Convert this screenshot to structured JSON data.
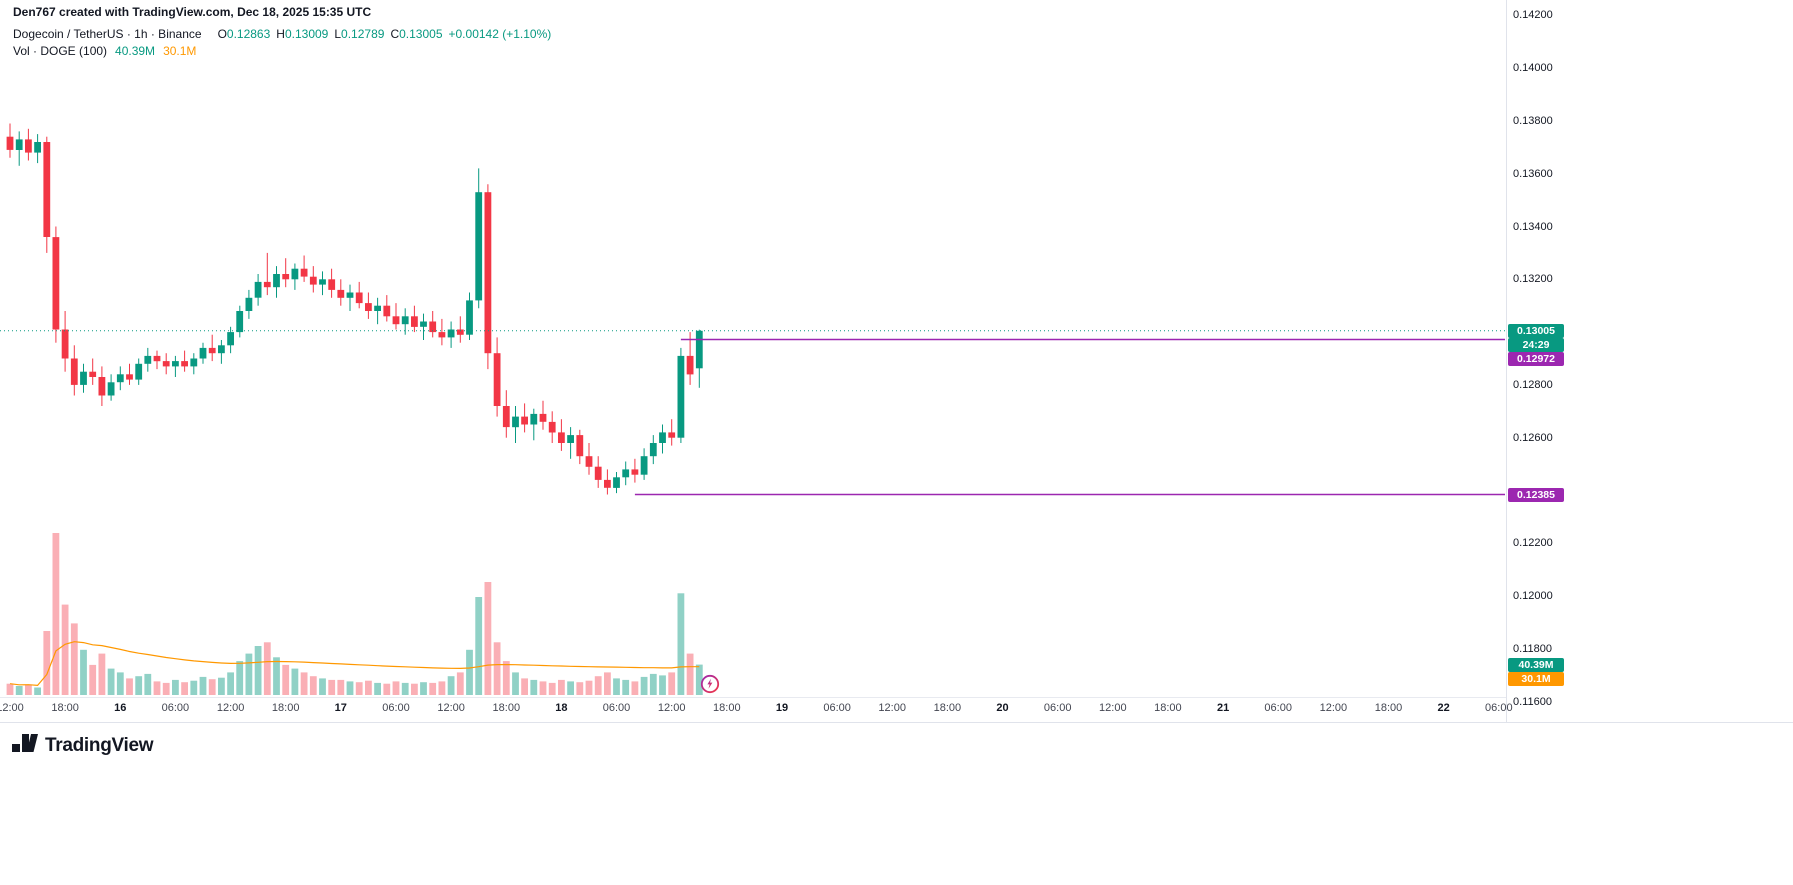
{
  "header": {
    "watermark": "Den767 created with TradingView.com, Dec 18, 2025 15:35 UTC",
    "symbol_line": {
      "title": "Dogecoin / TetherUS · 1h · Binance",
      "ohlc": [
        {
          "label": "O",
          "value": "0.12863"
        },
        {
          "label": "H",
          "value": "0.13009"
        },
        {
          "label": "L",
          "value": "0.12789"
        },
        {
          "label": "C",
          "value": "0.13005"
        }
      ],
      "change": "+0.00142 (+1.10%)"
    },
    "volume_line": {
      "title": "Vol · DOGE (100)",
      "value": "40.39M",
      "ma": "30.1M"
    }
  },
  "price_axis": {
    "labels": [
      {
        "text": "0.14200",
        "value": 0.142
      },
      {
        "text": "0.14000",
        "value": 0.14
      },
      {
        "text": "0.13800",
        "value": 0.138
      },
      {
        "text": "0.13600",
        "value": 0.136
      },
      {
        "text": "0.13400",
        "value": 0.134
      },
      {
        "text": "0.13200",
        "value": 0.132
      },
      {
        "text": "0.12800",
        "value": 0.128
      },
      {
        "text": "0.12600",
        "value": 0.126
      },
      {
        "text": "0.12200",
        "value": 0.122
      },
      {
        "text": "0.12000",
        "value": 0.12
      },
      {
        "text": "0.11800",
        "value": 0.118
      },
      {
        "text": "0.11600",
        "value": 0.116
      }
    ],
    "current_badge": "0.13005",
    "countdown_badge": "24:29",
    "level_badges": [
      "0.12972",
      "0.12385"
    ],
    "volume_badge": "40.39M",
    "volume_ma_badge": "30.1M"
  },
  "time_axis": {
    "labels": [
      {
        "text": "12:00",
        "hour": 0,
        "major": false
      },
      {
        "text": "18:00",
        "hour": 6,
        "major": false
      },
      {
        "text": "16",
        "hour": 12,
        "major": true
      },
      {
        "text": "06:00",
        "hour": 18,
        "major": false
      },
      {
        "text": "12:00",
        "hour": 24,
        "major": false
      },
      {
        "text": "18:00",
        "hour": 30,
        "major": false
      },
      {
        "text": "17",
        "hour": 36,
        "major": true
      },
      {
        "text": "06:00",
        "hour": 42,
        "major": false
      },
      {
        "text": "12:00",
        "hour": 48,
        "major": false
      },
      {
        "text": "18:00",
        "hour": 54,
        "major": false
      },
      {
        "text": "18",
        "hour": 60,
        "major": true
      },
      {
        "text": "06:00",
        "hour": 66,
        "major": false
      },
      {
        "text": "12:00",
        "hour": 72,
        "major": false
      },
      {
        "text": "18:00",
        "hour": 78,
        "major": false
      },
      {
        "text": "19",
        "hour": 84,
        "major": true
      },
      {
        "text": "06:00",
        "hour": 90,
        "major": false
      },
      {
        "text": "12:00",
        "hour": 96,
        "major": false
      },
      {
        "text": "18:00",
        "hour": 102,
        "major": false
      },
      {
        "text": "20",
        "hour": 108,
        "major": true
      },
      {
        "text": "06:00",
        "hour": 114,
        "major": false
      },
      {
        "text": "12:00",
        "hour": 120,
        "major": false
      },
      {
        "text": "18:00",
        "hour": 126,
        "major": false
      },
      {
        "text": "21",
        "hour": 132,
        "major": true
      },
      {
        "text": "06:00",
        "hour": 138,
        "major": false
      },
      {
        "text": "12:00",
        "hour": 144,
        "major": false
      },
      {
        "text": "18:00",
        "hour": 150,
        "major": false
      },
      {
        "text": "22",
        "hour": 156,
        "major": true
      },
      {
        "text": "06:00",
        "hour": 162,
        "major": false
      }
    ]
  },
  "footer": {
    "brand": "TradingView"
  },
  "colors": {
    "up": "#089981",
    "down": "#f23645",
    "vol_up": "rgba(8,153,129,0.45)",
    "vol_down": "rgba(242,54,69,0.40)",
    "volume_ma": "#ff9800",
    "level_line": "#9c27b0",
    "current_line": "#089981"
  },
  "chart_data": {
    "type": "candlestick",
    "interval": "1h",
    "pair": "Dogecoin / TetherUS",
    "exchange": "Binance",
    "price_range": [
      0.1158,
      0.1422
    ],
    "current_price": 0.13005,
    "volume_ma_window": 100,
    "levels": [
      {
        "price": 0.12972,
        "start_index": 73
      },
      {
        "price": 0.12385,
        "start_index": 68
      }
    ],
    "candles": [
      [
        0.1374,
        0.1379,
        0.1366,
        0.1369,
        15
      ],
      [
        0.1369,
        0.1376,
        0.1363,
        0.1373,
        12
      ],
      [
        0.1373,
        0.1377,
        0.1365,
        0.1368,
        14
      ],
      [
        0.1368,
        0.1375,
        0.1364,
        0.1372,
        10
      ],
      [
        0.1372,
        0.1374,
        0.133,
        0.1336,
        85
      ],
      [
        0.1336,
        0.134,
        0.1296,
        0.1301,
        215
      ],
      [
        0.1301,
        0.1308,
        0.1285,
        0.129,
        120
      ],
      [
        0.129,
        0.1295,
        0.1276,
        0.128,
        95
      ],
      [
        0.128,
        0.1288,
        0.1277,
        0.1285,
        60
      ],
      [
        0.1285,
        0.129,
        0.128,
        0.1283,
        40
      ],
      [
        0.1283,
        0.1287,
        0.1272,
        0.1276,
        55
      ],
      [
        0.1276,
        0.1284,
        0.1274,
        0.1281,
        35
      ],
      [
        0.1281,
        0.1287,
        0.1278,
        0.1284,
        30
      ],
      [
        0.1284,
        0.1288,
        0.128,
        0.1282,
        22
      ],
      [
        0.1282,
        0.129,
        0.128,
        0.1288,
        25
      ],
      [
        0.1288,
        0.1294,
        0.1285,
        0.1291,
        28
      ],
      [
        0.1291,
        0.1293,
        0.1286,
        0.1289,
        18
      ],
      [
        0.1289,
        0.1292,
        0.1284,
        0.1287,
        16
      ],
      [
        0.1287,
        0.1291,
        0.1283,
        0.1289,
        20
      ],
      [
        0.1289,
        0.1293,
        0.1285,
        0.1287,
        17
      ],
      [
        0.1287,
        0.1292,
        0.1284,
        0.129,
        19
      ],
      [
        0.129,
        0.1296,
        0.1288,
        0.1294,
        24
      ],
      [
        0.1294,
        0.1299,
        0.1289,
        0.1292,
        21
      ],
      [
        0.1292,
        0.1297,
        0.1288,
        0.1295,
        23
      ],
      [
        0.1295,
        0.1302,
        0.1292,
        0.13,
        30
      ],
      [
        0.13,
        0.131,
        0.1298,
        0.1308,
        45
      ],
      [
        0.1308,
        0.1316,
        0.1305,
        0.1313,
        55
      ],
      [
        0.1313,
        0.1322,
        0.131,
        0.1319,
        65
      ],
      [
        0.1319,
        0.133,
        0.1314,
        0.1317,
        70
      ],
      [
        0.1317,
        0.1325,
        0.1313,
        0.1322,
        50
      ],
      [
        0.1322,
        0.1328,
        0.1317,
        0.132,
        40
      ],
      [
        0.132,
        0.1326,
        0.1316,
        0.1324,
        35
      ],
      [
        0.1324,
        0.1329,
        0.1319,
        0.1321,
        30
      ],
      [
        0.1321,
        0.1325,
        0.1315,
        0.1318,
        25
      ],
      [
        0.1318,
        0.1323,
        0.1314,
        0.132,
        22
      ],
      [
        0.132,
        0.1324,
        0.1313,
        0.1316,
        20
      ],
      [
        0.1316,
        0.132,
        0.131,
        0.1313,
        20
      ],
      [
        0.1313,
        0.1318,
        0.1308,
        0.1315,
        18
      ],
      [
        0.1315,
        0.1319,
        0.1309,
        0.1311,
        17
      ],
      [
        0.1311,
        0.1315,
        0.1305,
        0.1308,
        19
      ],
      [
        0.1308,
        0.1313,
        0.1303,
        0.131,
        16
      ],
      [
        0.131,
        0.1314,
        0.1304,
        0.1306,
        15
      ],
      [
        0.1306,
        0.1311,
        0.1301,
        0.1303,
        18
      ],
      [
        0.1303,
        0.1309,
        0.1299,
        0.1306,
        16
      ],
      [
        0.1306,
        0.131,
        0.13,
        0.1302,
        15
      ],
      [
        0.1302,
        0.1307,
        0.1297,
        0.1304,
        17
      ],
      [
        0.1304,
        0.1308,
        0.1298,
        0.13,
        16
      ],
      [
        0.13,
        0.1305,
        0.1295,
        0.1298,
        18
      ],
      [
        0.1298,
        0.1304,
        0.1294,
        0.1301,
        25
      ],
      [
        0.1301,
        0.1306,
        0.1296,
        0.1299,
        30
      ],
      [
        0.1299,
        0.1315,
        0.1297,
        0.1312,
        60
      ],
      [
        0.1312,
        0.1362,
        0.1309,
        0.1353,
        130
      ],
      [
        0.1353,
        0.1356,
        0.1286,
        0.1292,
        150
      ],
      [
        0.1292,
        0.1298,
        0.1268,
        0.1272,
        70
      ],
      [
        0.1272,
        0.1278,
        0.126,
        0.1264,
        45
      ],
      [
        0.1264,
        0.1272,
        0.1258,
        0.1268,
        30
      ],
      [
        0.1268,
        0.1273,
        0.1262,
        0.1265,
        22
      ],
      [
        0.1265,
        0.1271,
        0.1259,
        0.1269,
        20
      ],
      [
        0.1269,
        0.1274,
        0.1263,
        0.1266,
        18
      ],
      [
        0.1266,
        0.127,
        0.1258,
        0.1262,
        16
      ],
      [
        0.1262,
        0.1267,
        0.1255,
        0.1258,
        20
      ],
      [
        0.1258,
        0.1264,
        0.1252,
        0.1261,
        18
      ],
      [
        0.1261,
        0.1263,
        0.125,
        0.1253,
        17
      ],
      [
        0.1253,
        0.1258,
        0.1246,
        0.1249,
        19
      ],
      [
        0.1249,
        0.1253,
        0.1241,
        0.1244,
        25
      ],
      [
        0.1244,
        0.1248,
        0.12385,
        0.1241,
        30
      ],
      [
        0.1241,
        0.1247,
        0.1239,
        0.1245,
        22
      ],
      [
        0.1245,
        0.1251,
        0.1242,
        0.1248,
        20
      ],
      [
        0.1248,
        0.1252,
        0.1243,
        0.1246,
        18
      ],
      [
        0.1246,
        0.1256,
        0.1244,
        0.1253,
        24
      ],
      [
        0.1253,
        0.1261,
        0.125,
        0.1258,
        28
      ],
      [
        0.1258,
        0.1265,
        0.1254,
        0.1262,
        26
      ],
      [
        0.1262,
        0.1267,
        0.1257,
        0.126,
        30
      ],
      [
        0.126,
        0.1294,
        0.1258,
        0.1291,
        135
      ],
      [
        0.1291,
        0.13,
        0.128,
        0.1284,
        55
      ],
      [
        0.12863,
        0.13009,
        0.12789,
        0.13005,
        40.39
      ]
    ]
  }
}
